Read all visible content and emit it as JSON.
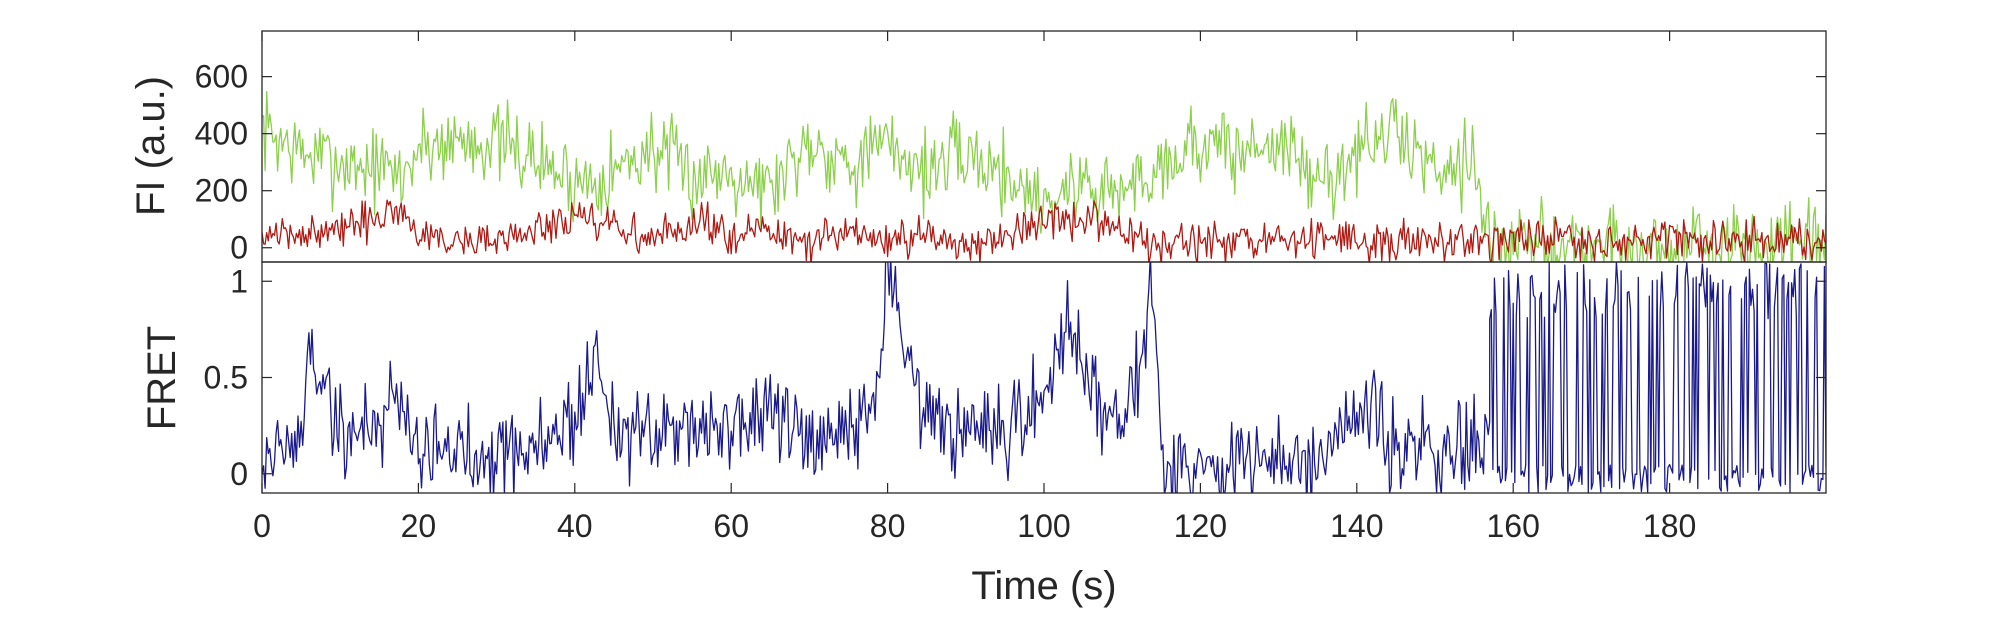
{
  "chart_data": [
    {
      "type": "line",
      "ylabel": "FI (a.u.)",
      "xlabel": "",
      "xlim": [
        0,
        200
      ],
      "ylim": [
        -50,
        760
      ],
      "yticks": [
        0,
        200,
        400,
        600
      ],
      "ytick_labels": [
        "0",
        "200",
        "400",
        "600"
      ],
      "grid": false,
      "legend": "none",
      "series": [
        {
          "color": "#8cd04c",
          "x": [
            0,
            5,
            10,
            15,
            18,
            20,
            25,
            30,
            35,
            40,
            45,
            50,
            55,
            60,
            65,
            70,
            75,
            80,
            85,
            90,
            95,
            100,
            105,
            110,
            115,
            120,
            125,
            130,
            135,
            140,
            145,
            150,
            155,
            157,
            160,
            170,
            180,
            190,
            200
          ],
          "values": [
            420,
            330,
            300,
            280,
            250,
            350,
            380,
            370,
            310,
            230,
            270,
            350,
            250,
            280,
            210,
            380,
            300,
            360,
            270,
            330,
            260,
            160,
            230,
            190,
            300,
            370,
            330,
            380,
            220,
            330,
            410,
            280,
            330,
            10,
            0,
            20,
            0,
            10,
            0
          ]
        },
        {
          "color": "#b01a14",
          "x": [
            0,
            5,
            10,
            15,
            18,
            20,
            25,
            30,
            35,
            40,
            45,
            50,
            55,
            60,
            65,
            70,
            75,
            80,
            85,
            90,
            95,
            100,
            105,
            110,
            115,
            120,
            125,
            130,
            135,
            140,
            145,
            150,
            155,
            157,
            160,
            170,
            180,
            190,
            200
          ],
          "values": [
            30,
            50,
            60,
            100,
            140,
            40,
            20,
            30,
            60,
            100,
            70,
            30,
            80,
            60,
            50,
            10,
            50,
            20,
            30,
            20,
            40,
            80,
            100,
            50,
            20,
            10,
            20,
            10,
            40,
            30,
            10,
            30,
            40,
            30,
            30,
            20,
            30,
            20,
            20
          ]
        }
      ]
    },
    {
      "type": "line",
      "ylabel": "FRET",
      "xlabel": "Time (s)",
      "xlim": [
        0,
        200
      ],
      "ylim": [
        -0.1,
        1.1
      ],
      "yticks": [
        0,
        0.5,
        1
      ],
      "ytick_labels": [
        "0",
        "0.5",
        "1"
      ],
      "xticks": [
        0,
        20,
        40,
        60,
        80,
        100,
        120,
        140,
        160,
        180
      ],
      "xtick_labels": [
        "0",
        "20",
        "40",
        "60",
        "80",
        "100",
        "120",
        "140",
        "160",
        "180"
      ],
      "grid": false,
      "legend": "none",
      "series": [
        {
          "color": "#1a1a8c",
          "x": [
            0,
            5,
            6,
            10,
            15,
            17,
            20,
            25,
            30,
            35,
            40,
            43,
            45,
            50,
            55,
            60,
            65,
            70,
            75,
            79,
            80,
            85,
            90,
            95,
            100,
            103,
            105,
            110,
            112,
            114,
            115,
            120,
            125,
            130,
            135,
            140,
            142,
            145,
            150,
            155,
            157
          ],
          "values": [
            0.1,
            0.15,
            0.68,
            0.2,
            0.25,
            0.45,
            0.15,
            0.1,
            0.15,
            0.12,
            0.3,
            0.6,
            0.25,
            0.15,
            0.3,
            0.2,
            0.35,
            0.1,
            0.2,
            0.45,
            1.1,
            0.25,
            0.2,
            0.15,
            0.4,
            0.85,
            0.5,
            0.3,
            0.55,
            1.1,
            0.05,
            0.05,
            0.05,
            0.05,
            0.05,
            0.2,
            0.35,
            0.12,
            0.1,
            0.15,
            0.2
          ]
        }
      ],
      "high_noise_region": {
        "x_start": 157,
        "x_end": 200,
        "min": -0.1,
        "max": 1.1
      }
    }
  ],
  "colors": {
    "frame": "#262626",
    "background": "#ffffff"
  }
}
